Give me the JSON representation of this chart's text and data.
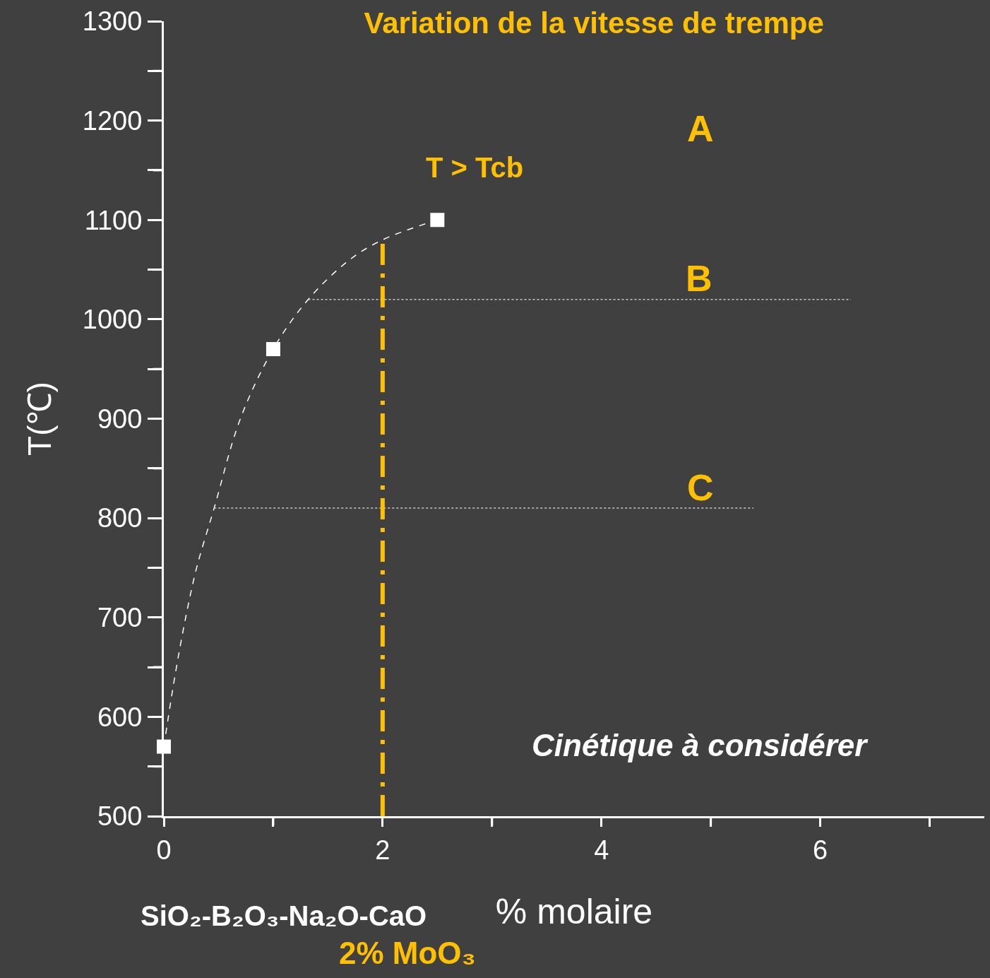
{
  "chart_data": {
    "type": "scatter",
    "title": "Variation de la vitesse de trempe",
    "xlabel": "% molaire",
    "ylabel": "T(℃)",
    "xlim": [
      0,
      7.5
    ],
    "ylim": [
      500,
      1300
    ],
    "xticks": [
      0,
      {
        "value": 1,
        "label": null
      },
      2,
      {
        "value": 3,
        "label": null
      },
      4,
      {
        "value": 5,
        "label": null
      },
      6,
      {
        "value": 7,
        "label": null
      }
    ],
    "yticks": [
      500,
      {
        "value": 550,
        "label": null
      },
      600,
      {
        "value": 650,
        "label": null
      },
      700,
      {
        "value": 750,
        "label": null
      },
      800,
      {
        "value": 850,
        "label": null
      },
      900,
      {
        "value": 950,
        "label": null
      },
      1000,
      {
        "value": 1050,
        "label": null
      },
      1100,
      {
        "value": 1150,
        "label": null
      },
      1200,
      {
        "value": 1250,
        "label": null
      },
      1300
    ],
    "legend": false,
    "marker": "square",
    "series": [
      {
        "type": "line",
        "color": "#ffffff",
        "line_style": "dashed",
        "marker": "none",
        "x": [
          0,
          0.1,
          0.2,
          0.3,
          0.46,
          0.7,
          1,
          1.32,
          1.7,
          2,
          2.5
        ],
        "values": [
          570,
          640,
          700,
          750,
          810,
          900,
          970,
          1020,
          1060,
          1080,
          1100
        ]
      },
      {
        "type": "line",
        "color": "#c8c8c8",
        "line_style": "dotted",
        "marker": "none",
        "x": [
          1.32,
          6.28
        ],
        "values": [
          1020,
          1020
        ]
      },
      {
        "type": "line",
        "color": "#c8c8c8",
        "line_style": "dotted",
        "marker": "none",
        "x": [
          0.46,
          5.39
        ],
        "values": [
          810,
          810
        ]
      },
      {
        "color": "#ffffff",
        "x": [
          0,
          1,
          2.5
        ],
        "values": [
          570,
          970,
          1100
        ]
      }
    ],
    "ref_lines": [
      {
        "axis": "x",
        "value": 2,
        "color": "#ffc000",
        "line_style": "dashed"
      }
    ],
    "annotations": [
      "A",
      "T > Tcb",
      "B",
      "C",
      "Cinétique à considérer",
      "SiO₂-B₂O₃-Na₂O-CaO",
      "2% MoO₃"
    ]
  }
}
